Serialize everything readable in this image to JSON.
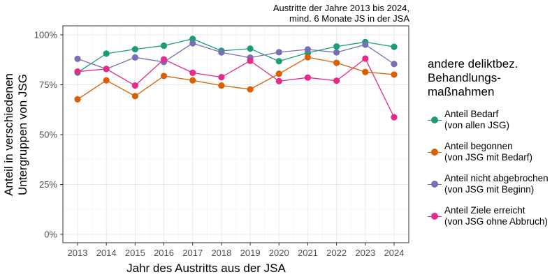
{
  "chart_data": {
    "type": "line",
    "title": "",
    "subtitle": "Austritte der Jahre 2013 bis 2024,\nmind. 6 Monate JS in der JSA",
    "xlabel": "Jahr des Austritts aus der JSA",
    "ylabel": "Anteil in verschiedenen\nUntergruppen von JSG",
    "x": [
      2013,
      2014,
      2015,
      2016,
      2017,
      2018,
      2019,
      2020,
      2021,
      2022,
      2023,
      2024
    ],
    "ylim": [
      0,
      100
    ],
    "yticks": [
      "0%",
      "25%",
      "50%",
      "75%",
      "100%"
    ],
    "grid": true,
    "legend_title": "andere deliktbez.\nBehandlungs-\nmaßnahmen",
    "legend_position": "right",
    "series": [
      {
        "name": "Anteil Bedarf\n(von allen JSG)",
        "color": "#1B9E77",
        "values": [
          81.1,
          90.6,
          92.8,
          94.6,
          98.0,
          92.0,
          93.1,
          86.8,
          91.0,
          94.2,
          96.4,
          94.0
        ]
      },
      {
        "name": "Anteil begonnen\n(von JSG mit Bedarf)",
        "color": "#D95F02",
        "values": [
          67.7,
          77.2,
          69.3,
          79.4,
          77.2,
          74.6,
          72.7,
          80.5,
          88.8,
          86.0,
          81.4,
          80.1
        ]
      },
      {
        "name": "Anteil nicht abgebrochen\n(von JSG mit Beginn)",
        "color": "#7570B3",
        "values": [
          88.0,
          82.9,
          88.7,
          86.4,
          95.8,
          91.2,
          88.6,
          91.3,
          92.7,
          91.2,
          95.1,
          85.4
        ]
      },
      {
        "name": "Anteil Ziele erreicht\n(von JSG ohne Abbruch)",
        "color": "#E7298A",
        "values": [
          81.6,
          82.9,
          74.6,
          87.7,
          81.0,
          78.8,
          87.0,
          76.8,
          78.6,
          77.0,
          88.1,
          58.7
        ]
      }
    ]
  }
}
